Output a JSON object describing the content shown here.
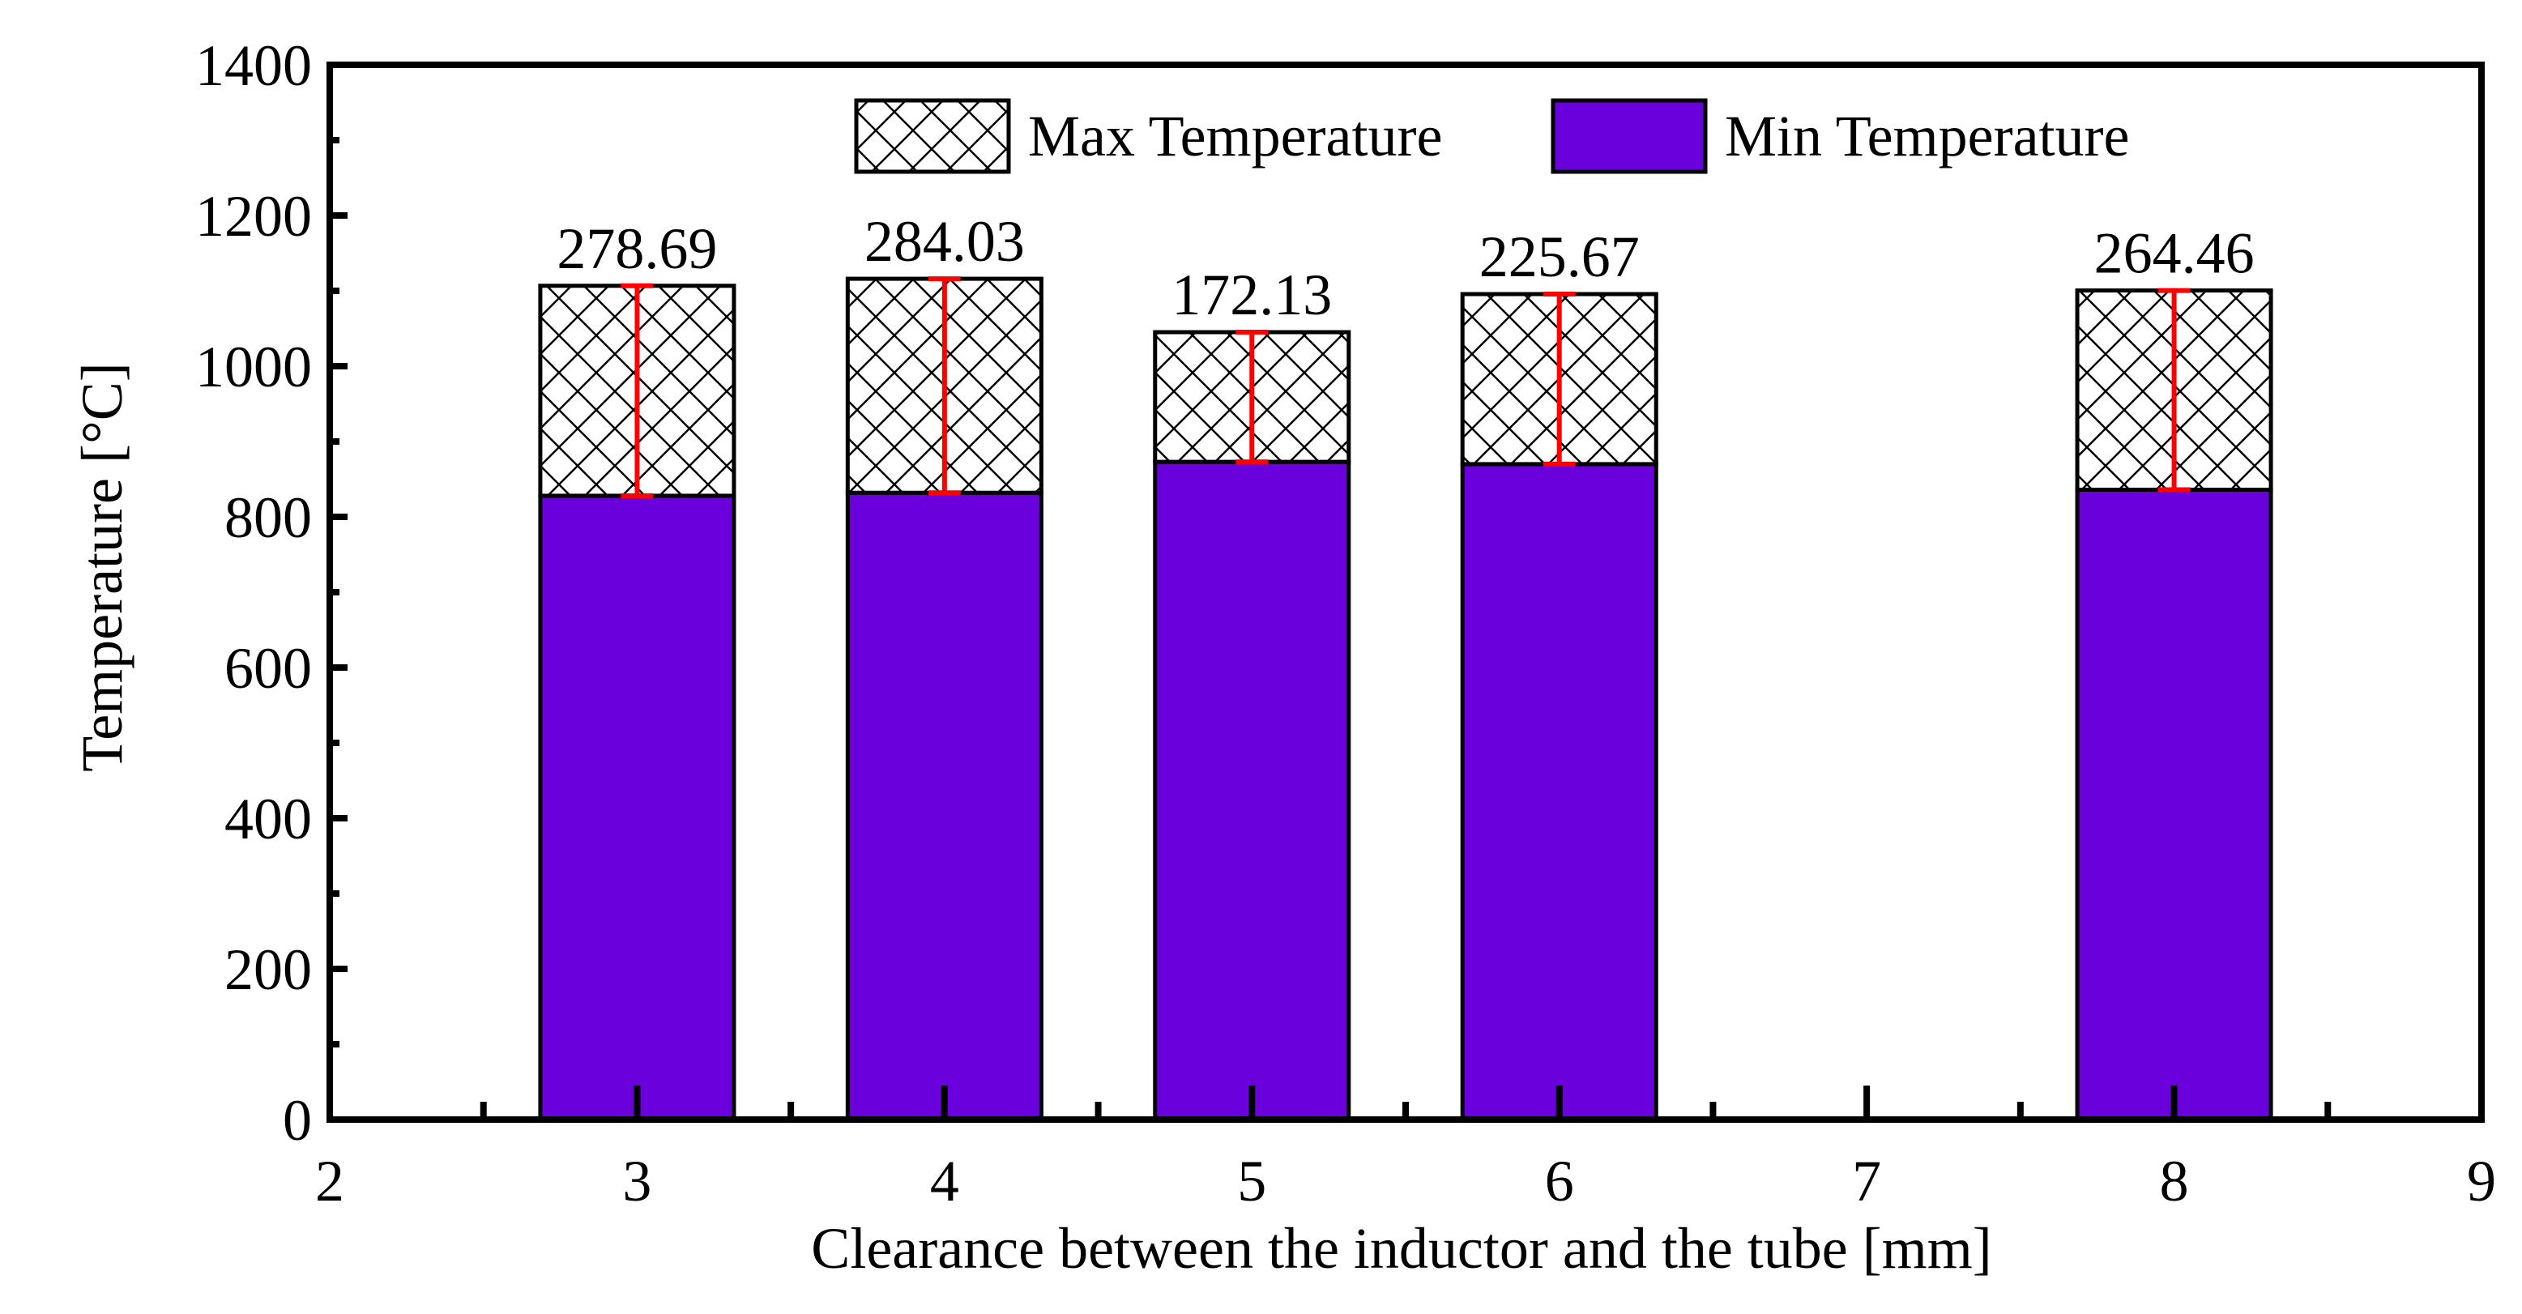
{
  "chart_data": {
    "type": "stacked_bar",
    "x": [
      3,
      4,
      5,
      6,
      8
    ],
    "series": [
      {
        "name": "Max Temperature",
        "color": "#ffffff",
        "hatch": "x",
        "values": [
          278.69,
          284.03,
          172.13,
          225.67,
          264.46
        ]
      },
      {
        "name": "Min Temperature",
        "color": "#6a00dc",
        "values": [
          828,
          832,
          873,
          870,
          836
        ]
      }
    ],
    "error_color": "#ff0000",
    "xlabel": "Clearance between the inductor and the tube [mm]",
    "ylabel": "Temperature [°C]",
    "xlim": [
      2,
      9
    ],
    "xticks": [
      2,
      3,
      4,
      5,
      6,
      7,
      8,
      9
    ],
    "xminorticks": [
      2.5,
      3.5,
      4.5,
      5.5,
      6.5,
      7.5,
      8.5
    ],
    "ylim": [
      0,
      1400
    ],
    "yticks": [
      0,
      200,
      400,
      600,
      800,
      1000,
      1200,
      1400
    ],
    "yminorticks": [
      100,
      300,
      500,
      700,
      900,
      1100,
      1300
    ],
    "legend": "upper center"
  }
}
